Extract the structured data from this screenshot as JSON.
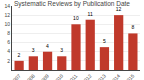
{
  "chart_data": {
    "type": "bar",
    "title": "Systematic Reviews by Publication Date",
    "categories": [
      "2007",
      "2008",
      "2009",
      "2010",
      "2011",
      "2012",
      "2013",
      "2014",
      "2015"
    ],
    "values": [
      2,
      3,
      4,
      3,
      10,
      11,
      5,
      12,
      8
    ],
    "color": "#c0392b",
    "ylim": [
      0,
      14
    ],
    "yticks": [
      2,
      4,
      6,
      8,
      10,
      12,
      14
    ],
    "grid": true,
    "data_labels": true
  }
}
